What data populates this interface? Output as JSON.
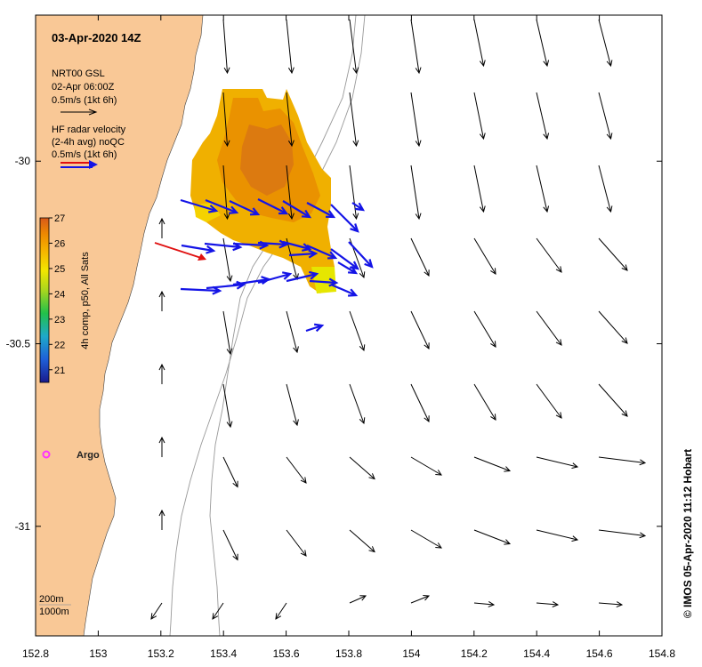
{
  "map": {
    "title": "03-Apr-2020 14Z",
    "model_label": "NRT00 GSL",
    "model_time": "02-Apr 06:00Z",
    "model_scale": "0.5m/s (1kt 6h)",
    "radar_label_1": "HF radar velocity",
    "radar_label_2": "(2-4h avg) noQC",
    "radar_scale": "0.5m/s (1kt 6h)",
    "colorbar_label": "4h comp, p50, All Sats",
    "colorbar_ticks": [
      "27",
      "26",
      "25",
      "24",
      "23",
      "22",
      "21"
    ],
    "colorbar_range": [
      20.5,
      27
    ],
    "colorbar_colors": [
      "#1a1a8c",
      "#1f5fd8",
      "#1fa9c9",
      "#22c04a",
      "#a9d61e",
      "#f2e600",
      "#f5b400",
      "#ee8a00",
      "#d85a1a"
    ],
    "argo_label": "Argo",
    "bathymetry_labels": [
      "200m",
      "1000m"
    ],
    "credit": "© IMOS 05-Apr-2020 11:12 Hobart",
    "x_ticks": [
      "152.8",
      "153",
      "153.2",
      "153.4",
      "153.6",
      "153.8",
      "154",
      "154.2",
      "154.4",
      "154.6",
      "154.8"
    ],
    "y_ticks": [
      "-30",
      "-30.5",
      "-31"
    ],
    "lon_range": [
      152.8,
      154.8
    ],
    "lat_range": [
      -31.3,
      -29.6
    ],
    "colors": {
      "land": "#f9c896",
      "model_arrow": "#000000",
      "radar_arrow": "#1414e6",
      "sst_warm": "#f0a000",
      "argo": "#ff33ff",
      "red_arrow": "#e01010",
      "isobath": "#999999"
    }
  }
}
